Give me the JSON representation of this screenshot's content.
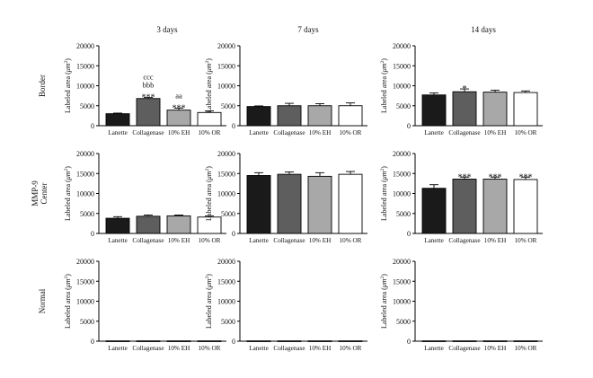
{
  "col_titles": [
    "3 days",
    "7 days",
    "14 days"
  ],
  "row_labels": [
    {
      "lines": [
        "Border"
      ]
    },
    {
      "lines": [
        "MMP-9",
        "Center"
      ]
    },
    {
      "lines": [
        "Normal"
      ]
    }
  ],
  "ylabel_main": "Labeled area (",
  "ylabel_unit": "μm",
  "ylabel_sup": "2",
  "ylabel_close": ")",
  "chart_data": [
    {
      "type": "bar",
      "row": "Border",
      "column": "3 days",
      "categories": [
        "Lanette",
        "Collagenase",
        "10% EH",
        "10% OR"
      ],
      "values": [
        3000,
        6800,
        3900,
        3300
      ],
      "errors": [
        150,
        250,
        500,
        400
      ],
      "annotations": [
        [],
        [
          "ccc",
          "bbb",
          "***"
        ],
        [
          "aa",
          "***"
        ],
        []
      ],
      "ylim": [
        0,
        20000
      ],
      "yticks": [
        0,
        5000,
        10000,
        15000,
        20000
      ]
    },
    {
      "type": "bar",
      "row": "Border",
      "column": "7 days",
      "categories": [
        "Lanette",
        "Collagenase",
        "10% EH",
        "10% OR"
      ],
      "values": [
        4800,
        5000,
        5000,
        5000
      ],
      "errors": [
        150,
        600,
        500,
        700
      ],
      "annotations": [
        [],
        [],
        [],
        []
      ],
      "ylim": [
        0,
        20000
      ],
      "yticks": [
        0,
        5000,
        10000,
        15000,
        20000
      ]
    },
    {
      "type": "bar",
      "row": "Border",
      "column": "14 days",
      "categories": [
        "Lanette",
        "Collagenase",
        "10% EH",
        "10% OR"
      ],
      "values": [
        7700,
        8500,
        8400,
        8300
      ],
      "errors": [
        500,
        700,
        500,
        400
      ],
      "annotations": [
        [],
        [
          "*"
        ],
        [],
        []
      ],
      "ylim": [
        0,
        20000
      ],
      "yticks": [
        0,
        5000,
        10000,
        15000,
        20000
      ]
    },
    {
      "type": "bar",
      "row": "MMP-9 Center",
      "column": "3 days",
      "categories": [
        "Lanette",
        "Collagenase",
        "10% EH",
        "10% OR"
      ],
      "values": [
        3800,
        4300,
        4400,
        4100
      ],
      "errors": [
        400,
        300,
        200,
        300
      ],
      "annotations": [
        [],
        [],
        [],
        []
      ],
      "ylim": [
        0,
        20000
      ],
      "yticks": [
        0,
        5000,
        10000,
        15000,
        20000
      ]
    },
    {
      "type": "bar",
      "row": "MMP-9 Center",
      "column": "7 days",
      "categories": [
        "Lanette",
        "Collagenase",
        "10% EH",
        "10% OR"
      ],
      "values": [
        14500,
        14800,
        14300,
        14800
      ],
      "errors": [
        700,
        600,
        900,
        700
      ],
      "annotations": [
        [],
        [],
        [],
        []
      ],
      "ylim": [
        0,
        20000
      ],
      "yticks": [
        0,
        5000,
        10000,
        15000,
        20000
      ]
    },
    {
      "type": "bar",
      "row": "MMP-9 Center",
      "column": "14 days",
      "categories": [
        "Lanette",
        "Collagenase",
        "10% EH",
        "10% OR"
      ],
      "values": [
        11300,
        13600,
        13600,
        13500
      ],
      "errors": [
        900,
        500,
        500,
        600
      ],
      "annotations": [
        [],
        [
          "***"
        ],
        [
          "***"
        ],
        [
          "***"
        ]
      ],
      "ylim": [
        0,
        20000
      ],
      "yticks": [
        0,
        5000,
        10000,
        15000,
        20000
      ]
    },
    {
      "type": "bar",
      "row": "Normal",
      "column": "3 days",
      "categories": [
        "Lanette",
        "Collagenase",
        "10% EH",
        "10% OR"
      ],
      "values": [
        80,
        80,
        80,
        80
      ],
      "errors": [
        0,
        0,
        0,
        0
      ],
      "annotations": [
        [],
        [],
        [],
        []
      ],
      "ylim": [
        0,
        20000
      ],
      "yticks": [
        0,
        5000,
        10000,
        15000,
        20000
      ]
    },
    {
      "type": "bar",
      "row": "Normal",
      "column": "7 days",
      "categories": [
        "Lanette",
        "Collagenase",
        "10% EH",
        "10% OR"
      ],
      "values": [
        80,
        80,
        80,
        80
      ],
      "errors": [
        0,
        0,
        0,
        0
      ],
      "annotations": [
        [],
        [],
        [],
        []
      ],
      "ylim": [
        0,
        20000
      ],
      "yticks": [
        0,
        5000,
        10000,
        15000,
        20000
      ]
    },
    {
      "type": "bar",
      "row": "Normal",
      "column": "14 days",
      "categories": [
        "Lanette",
        "Collagenase",
        "10% EH",
        "10% OR"
      ],
      "values": [
        80,
        80,
        80,
        80
      ],
      "errors": [
        0,
        0,
        0,
        0
      ],
      "annotations": [
        [],
        [],
        [],
        []
      ],
      "ylim": [
        0,
        20000
      ],
      "yticks": [
        0,
        5000,
        10000,
        15000,
        20000
      ]
    }
  ],
  "bar_colors": [
    "#1a1a1a",
    "#5e5e5e",
    "#a8a8a8",
    "#ffffff"
  ]
}
